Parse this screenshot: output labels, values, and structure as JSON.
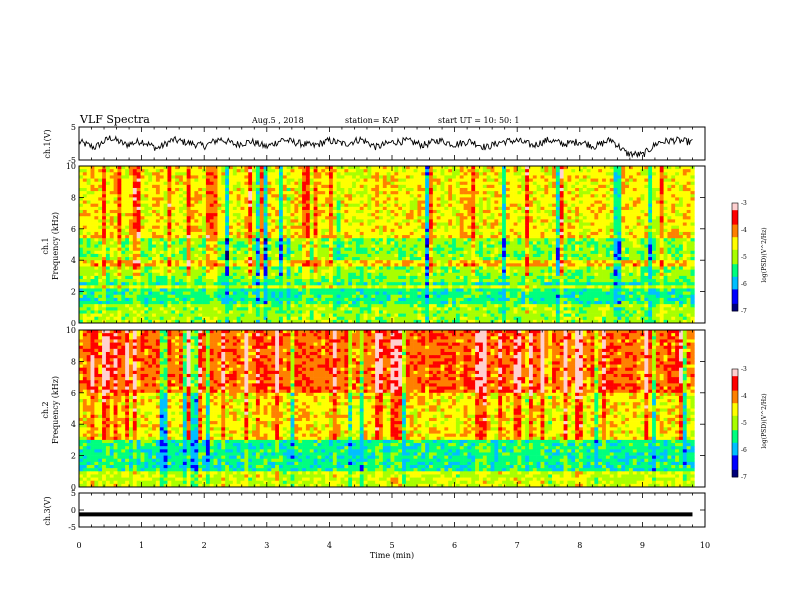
{
  "header": {
    "title": "VLF Spectra",
    "date": "Aug.5 , 2018",
    "station": "station= KAP",
    "start": "start UT = 10: 50: 1"
  },
  "colors": {
    "colormap": [
      "#00007a",
      "#0000ff",
      "#00bfff",
      "#00ff7f",
      "#a8ff00",
      "#ffff00",
      "#ff8000",
      "#ff0000",
      "#ffd0d0"
    ]
  },
  "chart_data": [
    {
      "type": "line",
      "panel": "ch1-waveform",
      "ylabel": "ch.1(V)",
      "ylim": [
        -5,
        5
      ],
      "yticks": [
        "5",
        "-5"
      ],
      "xlim": [
        0,
        10
      ],
      "series": [
        {
          "x": [
            0,
            0.25,
            0.5,
            0.75,
            1,
            1.25,
            1.5,
            1.75,
            2,
            2.25,
            2.5,
            2.75,
            3,
            3.25,
            3.5,
            3.75,
            4,
            4.25,
            4.5,
            4.75,
            5,
            5.25,
            5.5,
            5.75,
            6,
            6.25,
            6.5,
            6.75,
            7,
            7.25,
            7.5,
            7.75,
            8,
            8.25,
            8.5,
            8.75,
            9,
            9.25,
            9.5,
            9.75
          ],
          "values": [
            0.5,
            -1.2,
            1.8,
            -0.4,
            0.8,
            -1.5,
            1.1,
            0.2,
            -0.8,
            1.4,
            -0.3,
            0.6,
            -1.0,
            1.2,
            0.1,
            -0.7,
            0.9,
            -0.2,
            1.3,
            -1.1,
            0.4,
            0.8,
            -0.5,
            1.0,
            -0.3,
            0.7,
            -1.2,
            0.5,
            0.9,
            -0.6,
            1.1,
            -0.2,
            0.6,
            -0.9,
            1.2,
            -3.0,
            -3.5,
            0.3,
            1.0,
            0.5
          ]
        }
      ]
    },
    {
      "type": "heatmap",
      "panel": "ch1-spectrogram",
      "ylabel": "ch.1\nFrequency (kHz)",
      "ylim": [
        0,
        10
      ],
      "yticks": [
        "0",
        "2",
        "4",
        "6",
        "8",
        "10"
      ],
      "xlim": [
        0,
        10
      ],
      "color_scale": {
        "label": "log(PSD)(V^2/Hz)",
        "range": [
          -7,
          -3
        ],
        "ticks": [
          "-3",
          "-4",
          "-5",
          "-6",
          "-7"
        ]
      }
    },
    {
      "type": "heatmap",
      "panel": "ch2-spectrogram",
      "ylabel": "ch.2\nFrequency (kHz)",
      "ylim": [
        0,
        10
      ],
      "yticks": [
        "0",
        "2",
        "4",
        "6",
        "8",
        "10"
      ],
      "xlim": [
        0,
        10
      ],
      "color_scale": {
        "label": "log(PSD)(V^2/Hz)",
        "range": [
          -7,
          -3
        ],
        "ticks": [
          "-3",
          "-4",
          "-5",
          "-6",
          "-7"
        ]
      }
    },
    {
      "type": "line",
      "panel": "ch3-waveform",
      "ylabel": "ch.3(V)",
      "ylim": [
        -5,
        5
      ],
      "yticks": [
        "5",
        "0",
        "-5"
      ],
      "xlim": [
        0,
        10
      ],
      "xlabel": "Time (min)",
      "xticks": [
        "0",
        "1",
        "2",
        "3",
        "4",
        "5",
        "6",
        "7",
        "8",
        "9",
        "10"
      ],
      "series": [
        {
          "x": [
            0,
            9.8
          ],
          "values": [
            -1.3,
            -1.3
          ]
        }
      ]
    }
  ],
  "labels": {
    "ch1_wave": "ch.1(V)",
    "ch1_spec_a": "ch.1",
    "ch1_spec_b": "Frequency (kHz)",
    "ch2_spec_a": "ch.2",
    "ch2_spec_b": "Frequency (kHz)",
    "ch3_wave": "ch.3(V)",
    "xlabel": "Time (min)",
    "cb_label": "log(PSD)(V^2/Hz)"
  }
}
